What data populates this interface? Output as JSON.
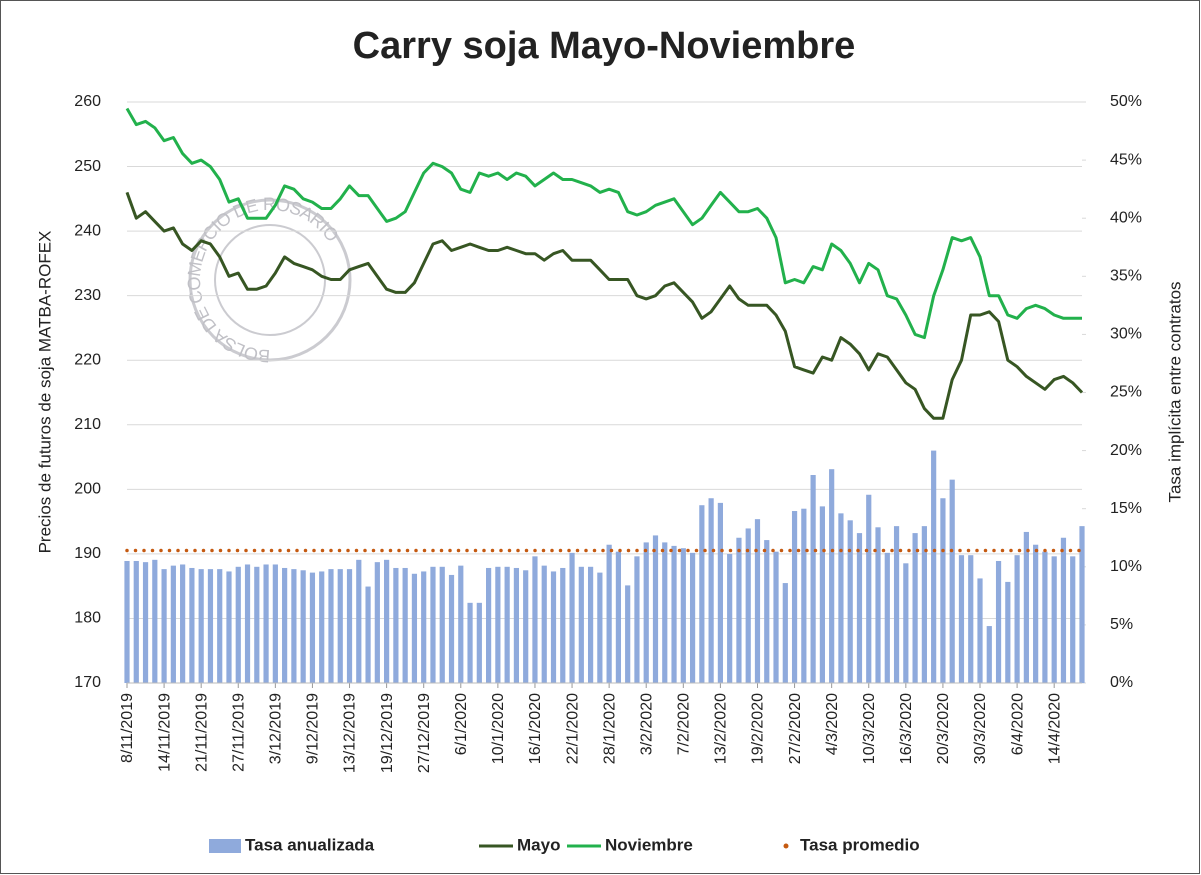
{
  "chart_data": {
    "type": "combo",
    "title": "Carry soja Mayo-Noviembre",
    "ylabel": "Precios de futuros de soja MATBA-ROFEX",
    "y2label": "Tasa implícita entre contratos",
    "watermark": "BOLSA DE COMERCIO DE ROSARIO",
    "legend": "bottom",
    "ylim": [
      170,
      260
    ],
    "yticks": [
      170,
      180,
      190,
      200,
      210,
      220,
      230,
      240,
      250,
      260
    ],
    "y2lim": [
      0,
      50
    ],
    "y2ticks": [
      {
        "value": 0,
        "label": "0%"
      },
      {
        "value": 5,
        "label": "5%"
      },
      {
        "value": 10,
        "label": "10%"
      },
      {
        "value": 15,
        "label": "15%"
      },
      {
        "value": 20,
        "label": "20%"
      },
      {
        "value": 25,
        "label": "25%"
      },
      {
        "value": 30,
        "label": "30%"
      },
      {
        "value": 35,
        "label": "35%"
      },
      {
        "value": 40,
        "label": "40%"
      },
      {
        "value": 45,
        "label": "45%"
      },
      {
        "value": 50,
        "label": "50%"
      }
    ],
    "grid": true,
    "categories": [
      "8/11/2019",
      null,
      null,
      null,
      "14/11/2019",
      null,
      null,
      null,
      "21/11/2019",
      null,
      null,
      null,
      "27/11/2019",
      null,
      null,
      null,
      "3/12/2019",
      null,
      null,
      null,
      "9/12/2019",
      null,
      null,
      null,
      "13/12/2019",
      null,
      null,
      null,
      "19/12/2019",
      null,
      null,
      null,
      "27/12/2019",
      null,
      null,
      null,
      "6/1/2020",
      null,
      null,
      null,
      "10/1/2020",
      null,
      null,
      null,
      "16/1/2020",
      null,
      null,
      null,
      "22/1/2020",
      null,
      null,
      null,
      "28/1/2020",
      null,
      null,
      null,
      "3/2/2020",
      null,
      null,
      null,
      "7/2/2020",
      null,
      null,
      null,
      "13/2/2020",
      null,
      null,
      null,
      "19/2/2020",
      null,
      null,
      null,
      "27/2/2020",
      null,
      null,
      null,
      "4/3/2020",
      null,
      null,
      null,
      "10/3/2020",
      null,
      null,
      null,
      "16/3/2020",
      null,
      null,
      null,
      "20/3/2020",
      null,
      null,
      null,
      "30/3/2020",
      null,
      null,
      null,
      "6/4/2020",
      null,
      null,
      null,
      "14/4/2020",
      null,
      null,
      null
    ],
    "series": [
      {
        "name": "Tasa anualizada",
        "kind": "bar",
        "axis": "y2",
        "color": "#8faadc",
        "values": [
          10.5,
          10.5,
          10.4,
          10.6,
          9.8,
          10.1,
          10.2,
          9.9,
          9.8,
          9.8,
          9.8,
          9.6,
          10.0,
          10.2,
          10.0,
          10.2,
          10.2,
          9.9,
          9.8,
          9.7,
          9.5,
          9.6,
          9.8,
          9.8,
          9.8,
          10.6,
          8.3,
          10.4,
          10.6,
          9.9,
          9.9,
          9.4,
          9.6,
          10.0,
          10.0,
          9.3,
          10.1,
          6.9,
          6.9,
          9.9,
          10.0,
          10.0,
          9.9,
          9.7,
          10.9,
          10.1,
          9.6,
          9.9,
          11.2,
          10.0,
          10.0,
          9.5,
          11.9,
          11.3,
          8.4,
          10.9,
          12.1,
          12.7,
          12.1,
          11.8,
          11.6,
          11.2,
          15.3,
          15.9,
          15.5,
          11.1,
          12.5,
          13.3,
          14.1,
          12.3,
          11.3,
          8.6,
          14.8,
          15.0,
          17.9,
          15.2,
          18.4,
          14.6,
          14.0,
          12.9,
          16.2,
          13.4,
          11.2,
          13.5,
          10.3,
          12.9,
          13.5,
          20.0,
          15.9,
          17.5,
          11.0,
          11.0,
          9.0,
          4.9,
          10.5,
          8.7,
          11.0,
          13.0,
          11.9,
          11.3,
          10.9,
          12.5,
          10.9,
          13.5
        ]
      },
      {
        "name": "Mayo",
        "kind": "line",
        "color": "#375623",
        "values": [
          246,
          242,
          243,
          241.5,
          240,
          240.5,
          238,
          237,
          238.5,
          238,
          236,
          233,
          233.5,
          231,
          231,
          231.5,
          233.5,
          236,
          235,
          234.5,
          234,
          233,
          232.5,
          232.5,
          234,
          234.5,
          235,
          233,
          231,
          230.5,
          230.5,
          232,
          235,
          238,
          238.5,
          237,
          237.5,
          238,
          237.5,
          237,
          237,
          237.5,
          237,
          236.5,
          236.5,
          235.5,
          236.5,
          237,
          235.5,
          235.5,
          235.5,
          234,
          232.5,
          232.5,
          232.5,
          230,
          229.5,
          230,
          231.5,
          232,
          230.5,
          229,
          226.5,
          227.5,
          229.5,
          231.5,
          229.5,
          228.5,
          228.5,
          228.5,
          227,
          224.5,
          219,
          218.5,
          218,
          220.5,
          220,
          223.5,
          222.5,
          221,
          218.5,
          221,
          220.5,
          218.5,
          216.5,
          215.5,
          212.5,
          211,
          211,
          217,
          220,
          227,
          227,
          227.5,
          226,
          220,
          219,
          217.5,
          216.5,
          215.5,
          217,
          217.5,
          216.5,
          215
        ]
      },
      {
        "name": "Noviembre",
        "kind": "line",
        "color": "#22b14c",
        "values": [
          259,
          256.5,
          257,
          256,
          254,
          254.5,
          252,
          250.5,
          251,
          250,
          248,
          244.5,
          245,
          242,
          242,
          242,
          244,
          247,
          246.5,
          245,
          244.5,
          243.5,
          243.5,
          245,
          247,
          245.5,
          245.5,
          243.5,
          241.5,
          242,
          243,
          246,
          249,
          250.5,
          250,
          249,
          246.5,
          246,
          249,
          248.5,
          249,
          248,
          249,
          248.5,
          247,
          248,
          249,
          248,
          248,
          247.5,
          247,
          246,
          246.5,
          246,
          243,
          242.5,
          243,
          244,
          244.5,
          245,
          243,
          241,
          242,
          244,
          246,
          244.5,
          243,
          243,
          243.5,
          242,
          239,
          232,
          232.5,
          232,
          234.5,
          234,
          238,
          237,
          235,
          232,
          235,
          234,
          230,
          229.5,
          227,
          224,
          223.5,
          230,
          234,
          239,
          238.5,
          239,
          236,
          230,
          230,
          227,
          226.5,
          228,
          228.5,
          228,
          227,
          226.5,
          226.5,
          226.5
        ]
      },
      {
        "name": "Tasa promedio",
        "kind": "dotted",
        "axis": "y2",
        "color": "#c55a11",
        "value": 11.4
      }
    ]
  }
}
